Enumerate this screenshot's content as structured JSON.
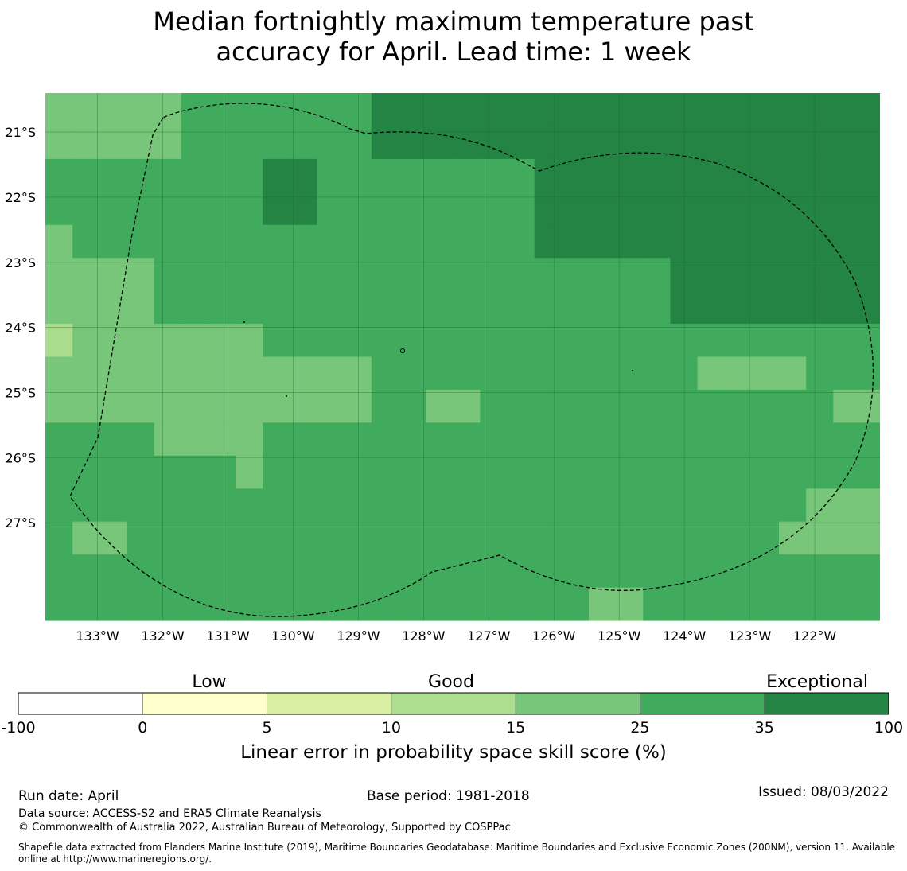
{
  "title": {
    "line1": "Median fortnightly maximum temperature past",
    "line2": "accuracy for April. Lead time: 1 week"
  },
  "map": {
    "lon_range": [
      -133.8,
      -121.0
    ],
    "lat_range": [
      -28.5,
      -20.4
    ],
    "lon_ticks": [
      {
        "value": -133,
        "label": "133°W"
      },
      {
        "value": -132,
        "label": "132°W"
      },
      {
        "value": -131,
        "label": "131°W"
      },
      {
        "value": -130,
        "label": "130°W"
      },
      {
        "value": -129,
        "label": "129°W"
      },
      {
        "value": -128,
        "label": "128°W"
      },
      {
        "value": -127,
        "label": "127°W"
      },
      {
        "value": -126,
        "label": "126°W"
      },
      {
        "value": -125,
        "label": "125°W"
      },
      {
        "value": -124,
        "label": "124°W"
      },
      {
        "value": -123,
        "label": "123°W"
      },
      {
        "value": -122,
        "label": "122°W"
      }
    ],
    "lat_ticks": [
      {
        "value": -21,
        "label": "21°S"
      },
      {
        "value": -22,
        "label": "22°S"
      },
      {
        "value": -23,
        "label": "23°S"
      },
      {
        "value": -24,
        "label": "24°S"
      },
      {
        "value": -25,
        "label": "25°S"
      },
      {
        "value": -26,
        "label": "26°S"
      },
      {
        "value": -27,
        "label": "27°S"
      }
    ],
    "grid_lines": true,
    "cell_colors": {
      "a": "#aadd8e",
      "b": "#77c679",
      "c": "#41ab5d",
      "d": "#238443"
    },
    "cells": [
      "bbbbbcccccccddddddddddddddddddddd",
      "bbbbbcccccccddddddddddddddddddddd",
      "ccccccccddccccccccdddddddddddddddd",
      "ccccccccddccccccccdddddddddddddddd",
      "bcccccccccccccccccdddddddddddddddd",
      "bbbbcccccccccccccccccccddddddddddd",
      "bbbbcccccccccccccccccccddddddddddd",
      "abbbbbbbcccccccccccccccccccccccdd",
      "bbbbbbbbbbbbccccccccccccbbbbcccccc",
      "bbbbbbbbbbbbccbbcccccccccccccbbbcc",
      "ccccbbbbcccccccccccccccccccccccbbb",
      "cccccccbcccccccccccccccccccccccccb",
      "ccccccccccccccccccccccccccccbbbbbb",
      "cbbccccccccccccccccccccccccbbbbbbb",
      "ccccccccccccccccccccccccccccccccbb",
      "ccccccccccccccccccccbbccccccccccbb"
    ]
  },
  "legend": {
    "categories": {
      "low": "Low",
      "good": "Good",
      "exceptional": "Exceptional"
    },
    "bins": [
      {
        "from": -100,
        "to": 0,
        "color": "#ffffff"
      },
      {
        "from": 0,
        "to": 5,
        "color": "#ffffcc"
      },
      {
        "from": 5,
        "to": 10,
        "color": "#d9f0a3"
      },
      {
        "from": 10,
        "to": 15,
        "color": "#addd8e"
      },
      {
        "from": 15,
        "to": 25,
        "color": "#78c679"
      },
      {
        "from": 25,
        "to": 35,
        "color": "#41ab5d"
      },
      {
        "from": 35,
        "to": 100,
        "color": "#238443"
      }
    ],
    "tick_labels": [
      "-100",
      "0",
      "5",
      "10",
      "15",
      "25",
      "35",
      "100"
    ],
    "label": "Linear error in probability space skill score (%)"
  },
  "footer": {
    "run_date": "Run date: April",
    "base_period": "Base period: 1981-2018",
    "issued": "Issued: 08/03/2022",
    "data_source": "Data source: ACCESS-S2 and ERA5 Climate Reanalysis",
    "copyright": "© Commonwealth of Australia 2022, Australian Bureau of Meteorology, Supported by COSPPac",
    "shapefile": "Shapefile data extracted from Flanders Marine Institute (2019), Maritime Boundaries Geodatabase: Maritime Boundaries and Exclusive Economic Zones (200NM), version 11. Available online at http://www.marineregions.org/."
  }
}
